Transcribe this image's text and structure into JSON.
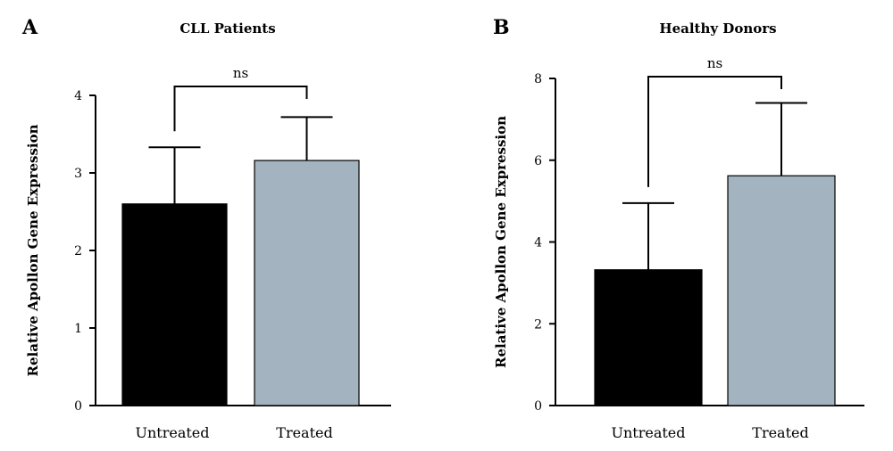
{
  "chart_data": [
    {
      "type": "bar",
      "panel_label": "A",
      "title": "CLL Patients",
      "xlabel": "",
      "ylabel": "Relative Apollon Gene Expression",
      "categories": [
        "Untreated",
        "Treated"
      ],
      "values": [
        2.6,
        3.16
      ],
      "error_upper": [
        3.33,
        3.72
      ],
      "bar_colors": [
        "#000000",
        "#a3b4c0"
      ],
      "ylim": [
        0,
        4
      ],
      "yticks": [
        "0",
        "1",
        "2",
        "3",
        "4"
      ],
      "significance": "ns",
      "grid": false
    },
    {
      "type": "bar",
      "panel_label": "B",
      "title": "Healthy Donors",
      "xlabel": "",
      "ylabel": "Relative Apollon Gene Expression",
      "categories": [
        "Untreated",
        "Treated"
      ],
      "values": [
        3.32,
        5.62
      ],
      "error_upper": [
        4.95,
        7.4
      ],
      "bar_colors": [
        "#000000",
        "#a3b4c0"
      ],
      "ylim": [
        0,
        8
      ],
      "yticks": [
        "0",
        "2",
        "4",
        "6",
        "8"
      ],
      "significance": "ns",
      "grid": false
    }
  ]
}
